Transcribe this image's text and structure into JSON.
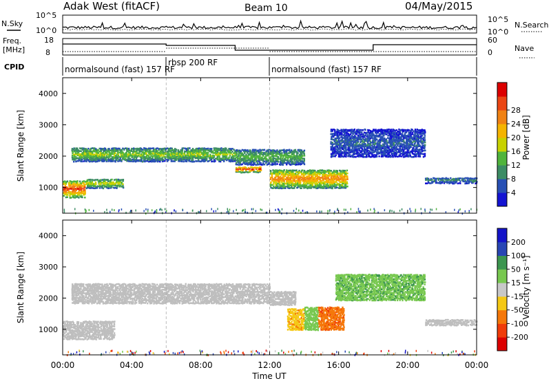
{
  "header": {
    "station": "Adak West (fitACF)",
    "beam": "Beam 10",
    "date": "04/May/2015"
  },
  "status_panels": {
    "nsky_label": "N.Sky",
    "nsearch_label": "N.Search",
    "noise_ticks_left": [
      "10^5",
      "10^0"
    ],
    "noise_ticks_right": [
      "10^5",
      "10^0"
    ],
    "freq_label_1": "Freq.",
    "freq_label_2": "[MHz]",
    "freq_ticks": [
      "18",
      "8"
    ],
    "nave_label": "Nave",
    "nave_ticks": [
      "60",
      "0"
    ],
    "cpid_label": "CPID",
    "cpid_segments": [
      {
        "text": "normalsound (fast) 157 RF",
        "start_hr": 0,
        "end_hr": 6
      },
      {
        "text": "rbsp 200 RF",
        "start_hr": 6,
        "end_hr": 12
      },
      {
        "text": "normalsound (fast) 157 RF",
        "start_hr": 12,
        "end_hr": 24
      }
    ]
  },
  "xaxis": {
    "title": "Time UT",
    "ticks": [
      "00:00",
      "04:00",
      "08:00",
      "12:00",
      "16:00",
      "20:00",
      "00:00"
    ]
  },
  "colors": {
    "power_scale": [
      "#1414d2",
      "#2850b4",
      "#3c8c64",
      "#50b43c",
      "#c8d200",
      "#f5b400",
      "#f08214",
      "#eb4614",
      "#dc0000"
    ],
    "velocity_scale": [
      "#dc0000",
      "#f03c0a",
      "#f5780a",
      "#f5c814",
      "#c8c8c8",
      "#78c850",
      "#3c9650",
      "#2846b4",
      "#1414c8"
    ],
    "ground_scatter": "#bebebe"
  },
  "chart_data": [
    {
      "type": "heatmap",
      "title": "Power",
      "ylabel": "Slant Range [km]",
      "xlabel": "Time UT",
      "xlim": [
        0,
        24
      ],
      "ylim": [
        180,
        4500
      ],
      "yticks": [
        "1000",
        "2000",
        "3000",
        "4000"
      ],
      "colorbar": {
        "label": "Power [dB]",
        "ticks": [
          "4",
          "8",
          "12",
          "16",
          "20",
          "24",
          "28"
        ],
        "range": [
          0,
          30
        ]
      },
      "scatter_bands": [
        {
          "t_start": 0.0,
          "t_end": 1.3,
          "range_low_km": 700,
          "range_high_km": 1250,
          "peak_db": 26
        },
        {
          "t_start": 1.3,
          "t_end": 3.5,
          "range_low_km": 1000,
          "range_high_km": 1300,
          "peak_db": 16
        },
        {
          "t_start": 0.5,
          "t_end": 10.0,
          "range_low_km": 1850,
          "range_high_km": 2300,
          "peak_db": 14
        },
        {
          "t_start": 10.0,
          "t_end": 11.5,
          "range_low_km": 1500,
          "range_high_km": 1700,
          "peak_db": 26
        },
        {
          "t_start": 10.0,
          "t_end": 14.0,
          "range_low_km": 1750,
          "range_high_km": 2250,
          "peak_db": 12
        },
        {
          "t_start": 12.0,
          "t_end": 16.5,
          "range_low_km": 1000,
          "range_high_km": 1600,
          "peak_db": 22
        },
        {
          "t_start": 15.5,
          "t_end": 21.0,
          "range_low_km": 2000,
          "range_high_km": 2900,
          "peak_db": 6
        },
        {
          "t_start": 21.0,
          "t_end": 24.0,
          "range_low_km": 1150,
          "range_high_km": 1350,
          "peak_db": 8
        }
      ]
    },
    {
      "type": "heatmap",
      "title": "Velocity",
      "ylabel": "Slant Range [km]",
      "xlabel": "Time UT",
      "xlim": [
        0,
        24
      ],
      "ylim": [
        180,
        4500
      ],
      "yticks": [
        "1000",
        "2000",
        "3000",
        "4000"
      ],
      "colorbar": {
        "label": "Velocity [m s⁻¹]",
        "ticks": [
          "200",
          "100",
          "50",
          "15",
          "-15",
          "-50",
          "-100",
          "-200"
        ],
        "range": [
          -250,
          250
        ]
      },
      "scatter_bands": [
        {
          "t_start": 0.0,
          "t_end": 3.0,
          "range_low_km": 700,
          "range_high_km": 1300,
          "velocity": 0
        },
        {
          "t_start": 0.5,
          "t_end": 12.0,
          "range_low_km": 1850,
          "range_high_km": 2500,
          "velocity": 0
        },
        {
          "t_start": 12.0,
          "t_end": 13.5,
          "range_low_km": 1800,
          "range_high_km": 2250,
          "velocity": 0
        },
        {
          "t_start": 13.0,
          "t_end": 14.0,
          "range_low_km": 1000,
          "range_high_km": 1700,
          "velocity": -40
        },
        {
          "t_start": 14.0,
          "t_end": 14.8,
          "range_low_km": 1000,
          "range_high_km": 1750,
          "velocity": 30
        },
        {
          "t_start": 14.8,
          "t_end": 16.3,
          "range_low_km": 1000,
          "range_high_km": 1750,
          "velocity": -90
        },
        {
          "t_start": 15.8,
          "t_end": 21.0,
          "range_low_km": 1950,
          "range_high_km": 2800,
          "velocity": 40
        },
        {
          "t_start": 21.0,
          "t_end": 24.0,
          "range_low_km": 1150,
          "range_high_km": 1350,
          "velocity": 0
        }
      ]
    }
  ]
}
